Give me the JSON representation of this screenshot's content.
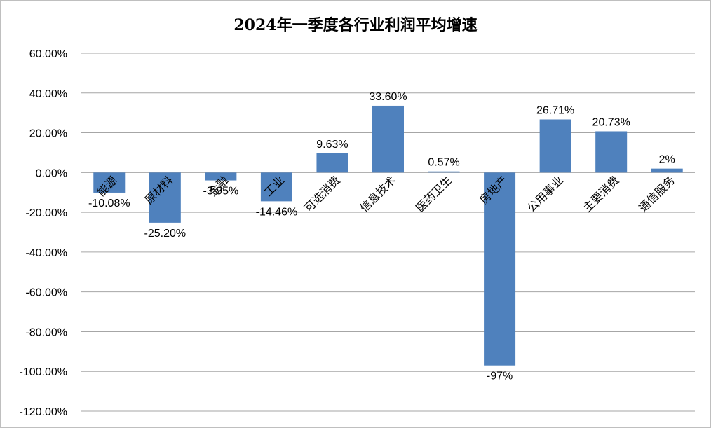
{
  "chart_data": {
    "type": "bar",
    "title": "2024年一季度各行业利润平均增速",
    "xlabel": "",
    "ylabel": "",
    "ylim": [
      -120,
      60
    ],
    "ytick_values": [
      60,
      40,
      20,
      0,
      -20,
      -40,
      -60,
      -80,
      -100,
      -120
    ],
    "ytick_labels": [
      "60.00%",
      "40.00%",
      "20.00%",
      "0.00%",
      "-20.00%",
      "-40.00%",
      "-60.00%",
      "-80.00%",
      "-100.00%",
      "-120.00%"
    ],
    "categories": [
      "能源",
      "原材料",
      "金融",
      "工业",
      "可选消费",
      "信息技术",
      "医药卫生",
      "房地产",
      "公用事业",
      "主要消费",
      "通信服务"
    ],
    "values": [
      -10.08,
      -25.2,
      -3.95,
      -14.46,
      9.63,
      33.6,
      0.57,
      -97,
      26.71,
      20.73,
      2
    ],
    "data_labels": [
      "-10.08%",
      "-25.20%",
      "-3.95%",
      "-14.46%",
      "9.63%",
      "33.60%",
      "0.57%",
      "-97%",
      "26.71%",
      "20.73%",
      "2%"
    ],
    "bar_color": "#4f81bd",
    "grid": true,
    "legend": "none"
  }
}
